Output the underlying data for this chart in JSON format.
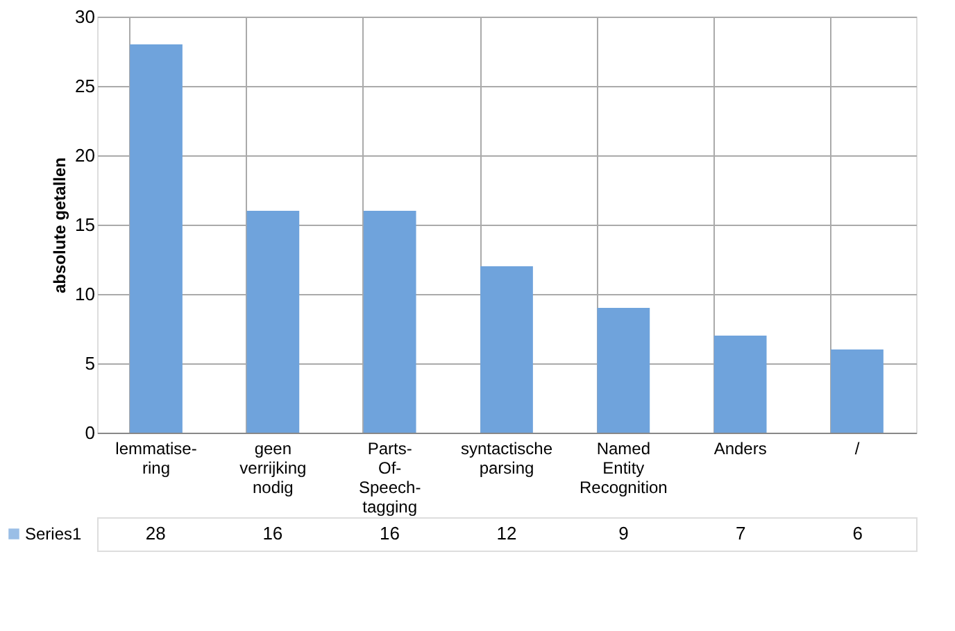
{
  "chart_data": {
    "type": "bar",
    "ylabel": "absolute getallen",
    "categories": [
      "lemmatise-ring",
      "geen verrijking nodig",
      "Parts-Of-Speech-tagging",
      "syntactische parsing",
      "Named Entity Recognition",
      "Anders",
      "/"
    ],
    "series": [
      {
        "name": "Series1",
        "color": "#6fa3dc",
        "values": [
          28,
          16,
          16,
          12,
          9,
          7,
          6
        ]
      }
    ],
    "ylim": [
      0,
      30
    ],
    "yticks": [
      0,
      5,
      10,
      15,
      20,
      25,
      30
    ],
    "grid": "y",
    "data_labels": true,
    "legend": "bottom left"
  }
}
